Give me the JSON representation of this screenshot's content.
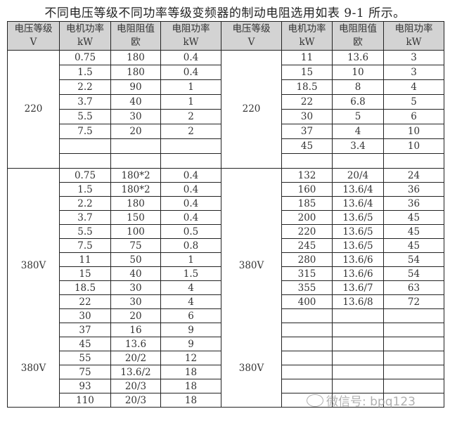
{
  "caption": "不同电压等级不同功率等级变频器的制动电阻选用如表 9-1 所示。",
  "headers": [
    [
      "电压等级",
      "V"
    ],
    [
      "电机功率",
      "kW"
    ],
    [
      "电阻阻值",
      "欧"
    ],
    [
      "电阻功率",
      "kW"
    ],
    [
      "电压等级",
      "V"
    ],
    [
      "电机功率",
      "kW"
    ],
    [
      "电阻阻值",
      "欧"
    ],
    [
      "电阻功率",
      "kW"
    ]
  ],
  "groups": [
    {
      "voltage_left": [
        "220"
      ],
      "voltage_right": [
        "220"
      ],
      "left_rows": [
        [
          "0.75",
          "180",
          "0.4"
        ],
        [
          "1.5",
          "180",
          "0.4"
        ],
        [
          "2.2",
          "90",
          "1"
        ],
        [
          "3.7",
          "40",
          "1"
        ],
        [
          "5.5",
          "30",
          "2"
        ],
        [
          "7.5",
          "20",
          "2"
        ],
        [
          "",
          "",
          ""
        ],
        [
          "",
          "",
          ""
        ]
      ],
      "right_rows": [
        [
          "11",
          "13.6",
          "3"
        ],
        [
          "15",
          "10",
          "3"
        ],
        [
          "18.5",
          "8",
          "4"
        ],
        [
          "22",
          "6.8",
          "5"
        ],
        [
          "30",
          "5",
          "6"
        ],
        [
          "37",
          "4",
          "10"
        ],
        [
          "45",
          "3.4",
          "10"
        ],
        [
          "",
          "",
          ""
        ]
      ]
    },
    {
      "voltage_left": [
        "380V",
        "380V"
      ],
      "voltage_right": [
        "380V",
        "380V"
      ],
      "left_rows": [
        [
          "0.75",
          "180*2",
          "0.4"
        ],
        [
          "1.5",
          "180*2",
          "0.4"
        ],
        [
          "2.2",
          "180",
          "0.4"
        ],
        [
          "3.7",
          "150",
          "0.4"
        ],
        [
          "5.5",
          "100",
          "0.5"
        ],
        [
          "7.5",
          "75",
          "0.8"
        ],
        [
          "11",
          "50",
          "1"
        ],
        [
          "15",
          "40",
          "1.5"
        ],
        [
          "18.5",
          "30",
          "4"
        ],
        [
          "22",
          "30",
          "4"
        ],
        [
          "30",
          "20",
          "6"
        ],
        [
          "37",
          "16",
          "9"
        ],
        [
          "45",
          "13.6",
          "9"
        ],
        [
          "55",
          "20/2",
          "12"
        ],
        [
          "75",
          "13.6/2",
          "18"
        ],
        [
          "93",
          "20/3",
          "18"
        ],
        [
          "110",
          "20/3",
          "18"
        ]
      ],
      "right_rows": [
        [
          "132",
          "20/4",
          "24"
        ],
        [
          "160",
          "13.6/4",
          "36"
        ],
        [
          "185",
          "13.6/4",
          "36"
        ],
        [
          "200",
          "13.6/5",
          "45"
        ],
        [
          "220",
          "13.6/5",
          "45"
        ],
        [
          "245",
          "13.6/5",
          "45"
        ],
        [
          "280",
          "13.6/6",
          "54"
        ],
        [
          "315",
          "13.6/6",
          "54"
        ],
        [
          "355",
          "13.6/7",
          "63"
        ],
        [
          "400",
          "13.6/8",
          "72"
        ],
        [
          "",
          "",
          ""
        ],
        [
          "",
          "",
          ""
        ],
        [
          "",
          "",
          ""
        ],
        [
          "",
          "",
          ""
        ],
        [
          "",
          "",
          ""
        ],
        [
          "",
          "",
          ""
        ],
        [
          "",
          "",
          ""
        ]
      ]
    }
  ],
  "watermark": {
    "icon": "wechat-icon",
    "text": "微信号: bpq123"
  }
}
